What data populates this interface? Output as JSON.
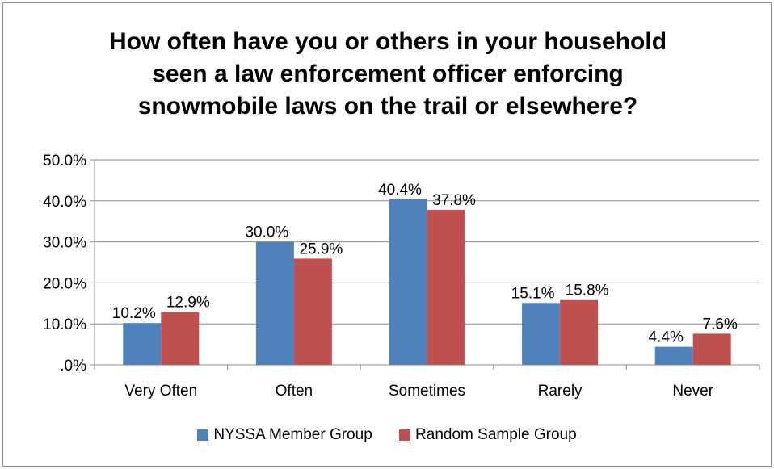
{
  "chart_data": {
    "type": "bar",
    "title_lines": [
      "How often have you or others in your household",
      "seen a law enforcement officer enforcing",
      "snowmobile laws on the trail or elsewhere?"
    ],
    "categories": [
      "Very Often",
      "Often",
      "Sometimes",
      "Rarely",
      "Never"
    ],
    "series": [
      {
        "name": "NYSSA Member Group",
        "color": "#4f81bd",
        "values": [
          10.2,
          30.0,
          40.4,
          15.1,
          4.4
        ],
        "labels": [
          "10.2%",
          "30.0%",
          "40.4%",
          "15.1%",
          "4.4%"
        ]
      },
      {
        "name": "Random Sample Group",
        "color": "#c0504d",
        "values": [
          12.9,
          25.9,
          37.8,
          15.8,
          7.6
        ],
        "labels": [
          "12.9%",
          "25.9%",
          "37.8%",
          "15.8%",
          "7.6%"
        ]
      }
    ],
    "ylim": [
      0,
      50
    ],
    "yticks": [
      0,
      10,
      20,
      30,
      40,
      50
    ],
    "ytick_labels": [
      ".0%",
      "10.0%",
      "20.0%",
      "30.0%",
      "40.0%",
      "50.0%"
    ],
    "grid": true,
    "legend_position": "bottom"
  }
}
